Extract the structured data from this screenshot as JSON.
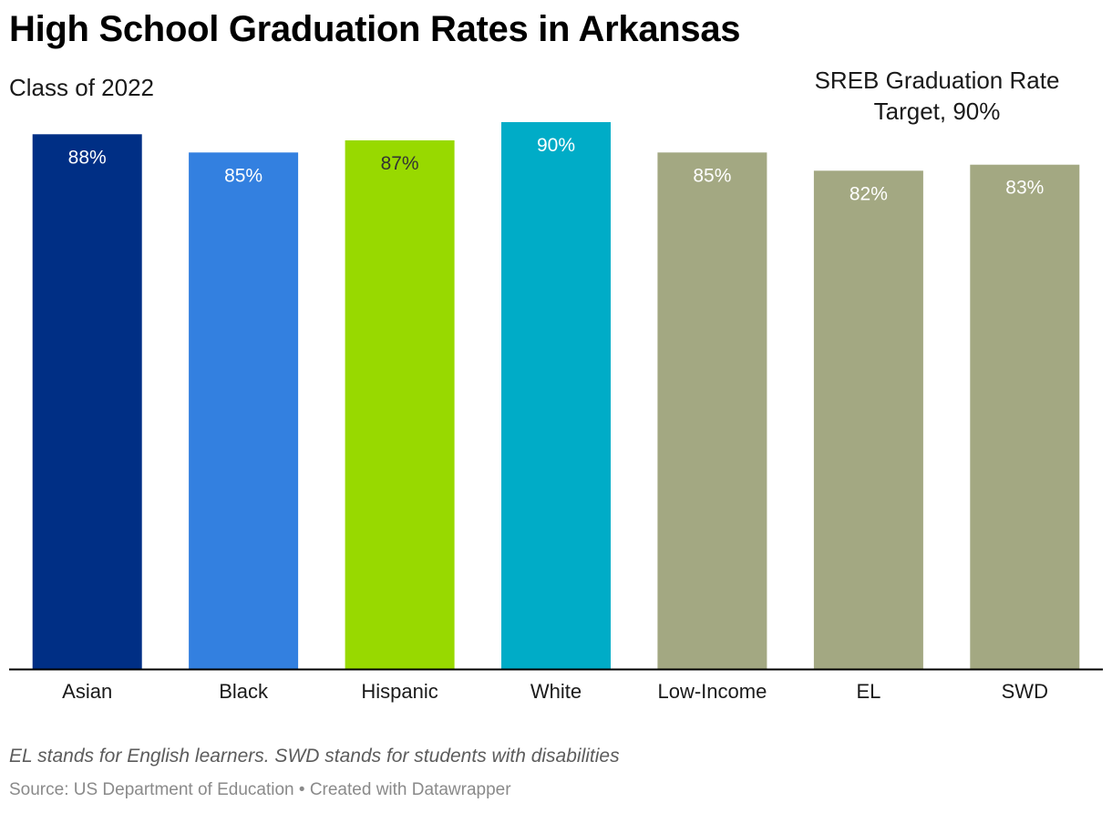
{
  "header": {
    "title": "High School Graduation Rates in Arkansas",
    "subtitle": "Class of 2022"
  },
  "annotation": {
    "line1": "SREB Graduation Rate",
    "line2": "Target, 90%"
  },
  "footer": {
    "note": "EL stands for English learners. SWD stands for students with disabilities",
    "source": "Source: US Department of Education • Created with Datawrapper"
  },
  "chart_data": {
    "type": "bar",
    "title": "High School Graduation Rates in Arkansas",
    "subtitle": "Class of 2022",
    "categories": [
      "Asian",
      "Black",
      "Hispanic",
      "White",
      "Low-Income",
      "EL",
      "SWD"
    ],
    "values": [
      88,
      85,
      87,
      90,
      85,
      82,
      83
    ],
    "value_labels": [
      "88%",
      "85%",
      "87%",
      "90%",
      "85%",
      "82%",
      "83%"
    ],
    "colors": [
      "#002f85",
      "#3380e0",
      "#98d900",
      "#00acc7",
      "#a3a882",
      "#a3a882",
      "#a3a882"
    ],
    "label_colors": [
      "#ffffff",
      "#ffffff",
      "#333333",
      "#ffffff",
      "#ffffff",
      "#ffffff",
      "#ffffff"
    ],
    "ylim": [
      0,
      90
    ],
    "grid": false,
    "xlabel": "",
    "ylabel": ""
  }
}
